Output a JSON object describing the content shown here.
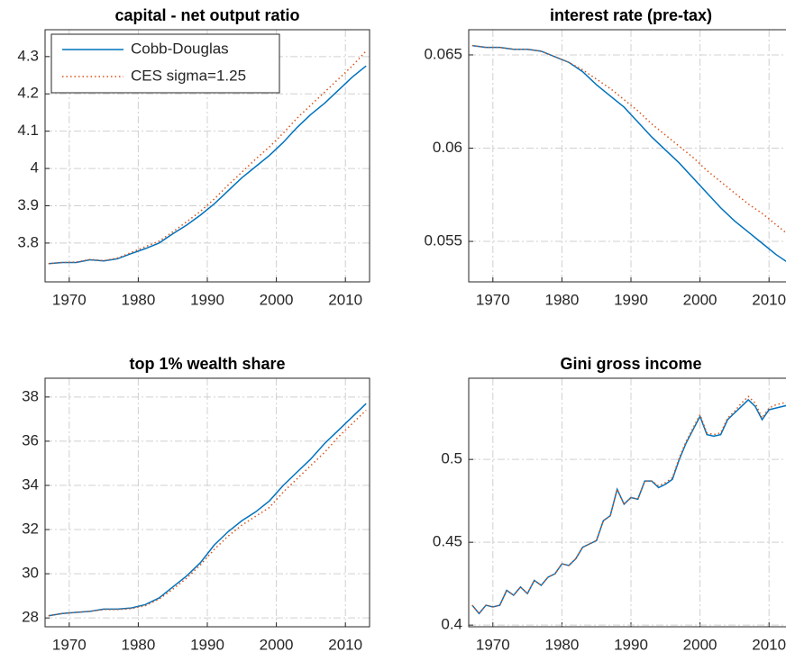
{
  "chart_data": [
    {
      "type": "line",
      "title": "capital - net output ratio",
      "x": [
        1967,
        1969,
        1971,
        1973,
        1975,
        1977,
        1979,
        1981,
        1983,
        1985,
        1987,
        1989,
        1991,
        1993,
        1995,
        1997,
        1999,
        2001,
        2003,
        2005,
        2007,
        2009,
        2011,
        2013
      ],
      "series": [
        {
          "name": "Cobb-Douglas",
          "color": "#0072bd",
          "style": "solid",
          "values": [
            3.745,
            3.748,
            3.748,
            3.755,
            3.752,
            3.758,
            3.772,
            3.785,
            3.8,
            3.825,
            3.848,
            3.875,
            3.905,
            3.94,
            3.975,
            4.005,
            4.035,
            4.07,
            4.11,
            4.145,
            4.175,
            4.21,
            4.245,
            4.275
          ]
        },
        {
          "name": "CES sigma=1.25",
          "color": "#d95319",
          "style": "dotted",
          "values": [
            3.745,
            3.748,
            3.749,
            3.756,
            3.753,
            3.76,
            3.775,
            3.79,
            3.805,
            3.83,
            3.857,
            3.885,
            3.918,
            3.955,
            3.99,
            4.025,
            4.058,
            4.095,
            4.135,
            4.17,
            4.205,
            4.24,
            4.275,
            4.315
          ]
        }
      ],
      "xlim": [
        1966.5,
        2013.5
      ],
      "xticks": [
        1970,
        1980,
        1990,
        2000,
        2010
      ],
      "ylim": [
        3.696,
        4.372
      ],
      "yticks": [
        3.8,
        3.9,
        4,
        4.1,
        4.2,
        4.3
      ],
      "grid": true,
      "legend": "upper left"
    },
    {
      "type": "line",
      "title": "interest rate (pre-tax)",
      "x": [
        1967,
        1969,
        1971,
        1973,
        1975,
        1977,
        1979,
        1981,
        1983,
        1985,
        1987,
        1989,
        1991,
        1993,
        1995,
        1997,
        1999,
        2001,
        2003,
        2005,
        2007,
        2009,
        2011,
        2013
      ],
      "series": [
        {
          "name": "Cobb-Douglas",
          "color": "#0072bd",
          "style": "solid",
          "values": [
            0.0655,
            0.0654,
            0.0654,
            0.0653,
            0.0653,
            0.0652,
            0.0649,
            0.0646,
            0.0641,
            0.0634,
            0.0628,
            0.0622,
            0.0614,
            0.0606,
            0.0599,
            0.0592,
            0.0584,
            0.0576,
            0.0568,
            0.0561,
            0.0555,
            0.0549,
            0.0543,
            0.0538
          ]
        },
        {
          "name": "CES sigma=1.25",
          "color": "#d95319",
          "style": "dotted",
          "values": [
            0.0655,
            0.0654,
            0.0654,
            0.0653,
            0.0653,
            0.0652,
            0.0649,
            0.0646,
            0.0642,
            0.0637,
            0.0632,
            0.0626,
            0.062,
            0.0613,
            0.0607,
            0.0601,
            0.0595,
            0.0588,
            0.0582,
            0.0576,
            0.057,
            0.0565,
            0.0559,
            0.0553
          ]
        }
      ],
      "xlim": [
        1966.5,
        2013.5
      ],
      "xticks": [
        1970,
        1980,
        1990,
        2000,
        2010
      ],
      "ylim": [
        0.05283,
        0.06635
      ],
      "yticks": [
        0.055,
        0.06,
        0.065
      ],
      "grid": true
    },
    {
      "type": "line",
      "title": "top 1% wealth share",
      "x": [
        1967,
        1969,
        1971,
        1973,
        1975,
        1977,
        1979,
        1981,
        1983,
        1985,
        1987,
        1989,
        1991,
        1993,
        1995,
        1997,
        1999,
        2001,
        2003,
        2005,
        2007,
        2009,
        2011,
        2013
      ],
      "series": [
        {
          "name": "Cobb-Douglas",
          "color": "#0072bd",
          "style": "solid",
          "values": [
            28.1,
            28.2,
            28.25,
            28.3,
            28.4,
            28.4,
            28.45,
            28.6,
            28.9,
            29.4,
            29.9,
            30.5,
            31.3,
            31.9,
            32.4,
            32.8,
            33.3,
            34.0,
            34.6,
            35.2,
            35.9,
            36.5,
            37.1,
            37.7
          ]
        },
        {
          "name": "CES sigma=1.25",
          "color": "#d95319",
          "style": "dotted",
          "values": [
            28.1,
            28.2,
            28.25,
            28.3,
            28.38,
            28.38,
            28.42,
            28.55,
            28.85,
            29.3,
            29.8,
            30.4,
            31.1,
            31.7,
            32.2,
            32.6,
            33.0,
            33.7,
            34.3,
            34.9,
            35.5,
            36.2,
            36.8,
            37.4
          ]
        }
      ],
      "xlim": [
        1966.5,
        2013.5
      ],
      "xticks": [
        1970,
        1980,
        1990,
        2000,
        2010
      ],
      "ylim": [
        27.6,
        38.85
      ],
      "yticks": [
        28,
        30,
        32,
        34,
        36,
        38
      ],
      "grid": true
    },
    {
      "type": "line",
      "title": "Gini gross income",
      "x": [
        1967,
        1968,
        1969,
        1970,
        1971,
        1972,
        1973,
        1974,
        1975,
        1976,
        1977,
        1978,
        1979,
        1980,
        1981,
        1982,
        1983,
        1984,
        1985,
        1986,
        1987,
        1988,
        1989,
        1990,
        1991,
        1992,
        1993,
        1994,
        1995,
        1996,
        1997,
        1998,
        1999,
        2000,
        2001,
        2002,
        2003,
        2004,
        2005,
        2006,
        2007,
        2008,
        2009,
        2010,
        2011,
        2012,
        2013
      ],
      "series": [
        {
          "name": "Cobb-Douglas",
          "color": "#0072bd",
          "style": "solid",
          "values": [
            0.412,
            0.407,
            0.412,
            0.411,
            0.412,
            0.421,
            0.418,
            0.423,
            0.419,
            0.427,
            0.424,
            0.429,
            0.431,
            0.437,
            0.436,
            0.44,
            0.447,
            0.449,
            0.451,
            0.463,
            0.466,
            0.482,
            0.473,
            0.477,
            0.476,
            0.487,
            0.487,
            0.483,
            0.485,
            0.488,
            0.5,
            0.51,
            0.518,
            0.526,
            0.515,
            0.514,
            0.515,
            0.524,
            0.528,
            0.532,
            0.536,
            0.532,
            0.524,
            0.53,
            0.531,
            0.532,
            0.533
          ]
        },
        {
          "name": "CES sigma=1.25",
          "color": "#d95319",
          "style": "dotted",
          "values": [
            0.412,
            0.407,
            0.412,
            0.411,
            0.412,
            0.421,
            0.418,
            0.423,
            0.419,
            0.427,
            0.424,
            0.429,
            0.431,
            0.437,
            0.436,
            0.44,
            0.447,
            0.449,
            0.451,
            0.463,
            0.466,
            0.482,
            0.473,
            0.477,
            0.476,
            0.487,
            0.487,
            0.484,
            0.486,
            0.489,
            0.501,
            0.511,
            0.519,
            0.527,
            0.516,
            0.515,
            0.516,
            0.525,
            0.529,
            0.534,
            0.538,
            0.534,
            0.525,
            0.531,
            0.533,
            0.534,
            0.535
          ]
        }
      ],
      "xlim": [
        1966.5,
        2013.5
      ],
      "xticks": [
        1970,
        1980,
        1990,
        2000,
        2010
      ],
      "ylim": [
        0.399,
        0.549
      ],
      "yticks": [
        0.4,
        0.45,
        0.5
      ],
      "grid": true
    }
  ]
}
